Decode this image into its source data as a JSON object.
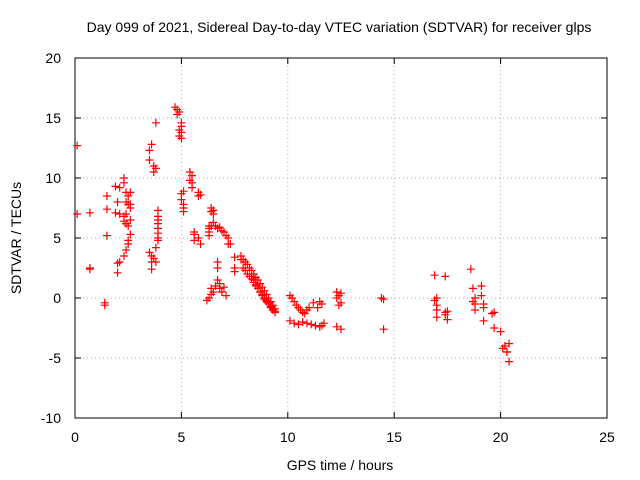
{
  "chart_data": {
    "type": "scatter",
    "title": "Day 099 of 2021, Sidereal Day-to-day VTEC variation (SDTVAR) for receiver glps",
    "xlabel": "GPS time / hours",
    "ylabel": "SDTVAR / TECUs",
    "xlim": [
      0,
      25
    ],
    "ylim": [
      -10,
      20
    ],
    "xticks": [
      "0",
      "5",
      "10",
      "15",
      "20",
      "25"
    ],
    "yticks": [
      "-10",
      "-5",
      "0",
      "5",
      "10",
      "15",
      "20"
    ],
    "grid": true,
    "marker": "+",
    "color": "#ff0000",
    "series": [
      {
        "name": "SDTVAR",
        "x": [
          0.1,
          0.1,
          0.7,
          0.7,
          0.7,
          1.4,
          1.4,
          1.5,
          1.5,
          1.5,
          1.9,
          1.9,
          2.0,
          2.0,
          2.0,
          2.1,
          2.1,
          2.1,
          2.3,
          2.3,
          2.3,
          2.3,
          2.3,
          2.4,
          2.4,
          2.4,
          2.4,
          2.4,
          2.5,
          2.5,
          2.5,
          2.5,
          2.5,
          2.6,
          2.6,
          2.6,
          2.6,
          2.6,
          3.5,
          3.5,
          3.5,
          3.6,
          3.6,
          3.6,
          3.6,
          3.7,
          3.7,
          3.7,
          3.8,
          3.8,
          3.8,
          3.8,
          3.9,
          3.9,
          3.9,
          3.9,
          3.9,
          3.9,
          3.9,
          3.9,
          4.7,
          4.8,
          4.8,
          4.9,
          4.9,
          4.9,
          5.0,
          5.0,
          5.0,
          5.0,
          5.0,
          5.0,
          5.1,
          5.1,
          5.1,
          5.1,
          5.4,
          5.4,
          5.5,
          5.5,
          5.5,
          5.6,
          5.6,
          5.6,
          5.8,
          5.8,
          5.8,
          5.9,
          5.9,
          6.2,
          6.3,
          6.3,
          6.3,
          6.3,
          6.3,
          6.4,
          6.4,
          6.4,
          6.4,
          6.4,
          6.5,
          6.5,
          6.5,
          6.5,
          6.6,
          6.6,
          6.7,
          6.7,
          6.7,
          6.7,
          6.8,
          6.8,
          6.8,
          6.9,
          6.9,
          7.0,
          7.0,
          7.1,
          7.1,
          7.2,
          7.2,
          7.3,
          7.5,
          7.5,
          7.5,
          7.8,
          7.8,
          7.9,
          7.9,
          8.0,
          8.0,
          8.1,
          8.1,
          8.2,
          8.2,
          8.3,
          8.3,
          8.4,
          8.4,
          8.5,
          8.5,
          8.6,
          8.6,
          8.7,
          8.7,
          8.8,
          8.8,
          8.9,
          8.9,
          9.0,
          9.0,
          9.1,
          9.1,
          9.2,
          9.2,
          9.3,
          9.3,
          9.4,
          9.4,
          8.3,
          8.4,
          8.5,
          8.6,
          8.7,
          8.8,
          8.9,
          9.0,
          9.1,
          9.2,
          9.3,
          9.4,
          10.1,
          10.2,
          10.3,
          10.4,
          10.5,
          10.6,
          10.7,
          10.8,
          10.9,
          11.0,
          10.1,
          10.3,
          10.5,
          10.7,
          10.9,
          11.1,
          11.3,
          11.5,
          11.6,
          11.7,
          11.2,
          11.4,
          11.6,
          11.5,
          12.3,
          12.3,
          12.4,
          12.4,
          12.5,
          12.5,
          12.3,
          12.5,
          14.4,
          14.5,
          14.5,
          16.9,
          16.9,
          17.0,
          17.0,
          17.0,
          17.0,
          17.4,
          17.4,
          17.5,
          17.5,
          17.4,
          18.6,
          18.7,
          18.7,
          18.8,
          18.8,
          18.8,
          19.1,
          19.1,
          19.2,
          19.2,
          19.2,
          19.6,
          19.7,
          19.7,
          20.0,
          20.1,
          20.2,
          20.3,
          20.4,
          20.4,
          20.3
        ],
        "y": [
          12.7,
          7.0,
          7.1,
          2.5,
          2.4,
          -0.4,
          -0.6,
          5.2,
          7.4,
          8.5,
          9.3,
          7.1,
          8.0,
          2.9,
          2.1,
          3.0,
          9.2,
          7.0,
          10.0,
          9.6,
          6.8,
          6.4,
          3.5,
          8.8,
          8.0,
          7.0,
          6.2,
          4.0,
          8.5,
          7.8,
          6.0,
          4.5,
          4.8,
          8.8,
          7.8,
          7.5,
          6.5,
          5.3,
          12.3,
          11.5,
          3.8,
          12.8,
          3.5,
          3.0,
          2.4,
          11.0,
          10.5,
          3.3,
          10.8,
          4.2,
          3.0,
          14.6,
          7.3,
          6.2,
          5.8,
          4.8,
          6.5,
          5.0,
          5.4,
          6.8,
          15.9,
          15.7,
          15.3,
          15.5,
          14.0,
          13.5,
          14.6,
          14.3,
          13.8,
          13.3,
          8.7,
          8.2,
          8.9,
          7.8,
          7.2,
          7.5,
          10.5,
          9.8,
          10.2,
          9.6,
          9.2,
          5.3,
          4.8,
          5.5,
          8.8,
          8.5,
          5.0,
          8.6,
          4.5,
          -0.2,
          5.5,
          5.8,
          6.0,
          5.2,
          0.0,
          7.5,
          7.2,
          6.0,
          0.3,
          0.8,
          7.3,
          7.0,
          6.3,
          0.5,
          6.0,
          1.0,
          5.8,
          3.0,
          2.5,
          1.5,
          5.9,
          1.2,
          0.8,
          5.6,
          0.5,
          5.5,
          0.9,
          5.2,
          0.2,
          5.0,
          4.5,
          4.5,
          3.4,
          2.2,
          2.5,
          3.5,
          3.2,
          3.2,
          2.5,
          3.0,
          2.3,
          2.8,
          2.0,
          2.5,
          1.8,
          2.3,
          1.6,
          2.0,
          1.3,
          1.7,
          1.0,
          1.5,
          0.8,
          1.2,
          0.5,
          0.9,
          0.3,
          0.6,
          0.0,
          0.3,
          -0.2,
          0.0,
          -0.4,
          -0.3,
          -0.7,
          -0.6,
          -0.9,
          -0.9,
          -1.1,
          1.8,
          1.5,
          1.1,
          0.8,
          0.5,
          0.2,
          -0.1,
          -0.3,
          -0.5,
          -0.8,
          -1.0,
          -1.2,
          0.2,
          0.0,
          -0.3,
          -0.6,
          -0.8,
          -1.0,
          -1.2,
          -1.3,
          -1.0,
          -0.8,
          -1.9,
          -2.1,
          -2.2,
          -2.0,
          -2.1,
          -2.2,
          -2.3,
          -2.4,
          -2.3,
          -2.1,
          -0.4,
          -0.8,
          -0.5,
          -0.3,
          0.5,
          0.0,
          0.2,
          -0.6,
          0.4,
          -0.4,
          -2.4,
          -2.6,
          0.0,
          -0.1,
          -2.6,
          1.9,
          -0.2,
          -0.6,
          -1.0,
          -1.6,
          0.0,
          1.8,
          -1.2,
          -1.8,
          -1.1,
          -1.4,
          2.4,
          0.8,
          -0.3,
          0.0,
          -0.5,
          -1.0,
          1.0,
          0.2,
          -0.8,
          -1.9,
          -0.5,
          -1.3,
          -2.5,
          -1.2,
          -2.8,
          -4.2,
          -4.0,
          -4.5,
          -5.3,
          -3.8,
          -4.5
        ]
      }
    ]
  }
}
